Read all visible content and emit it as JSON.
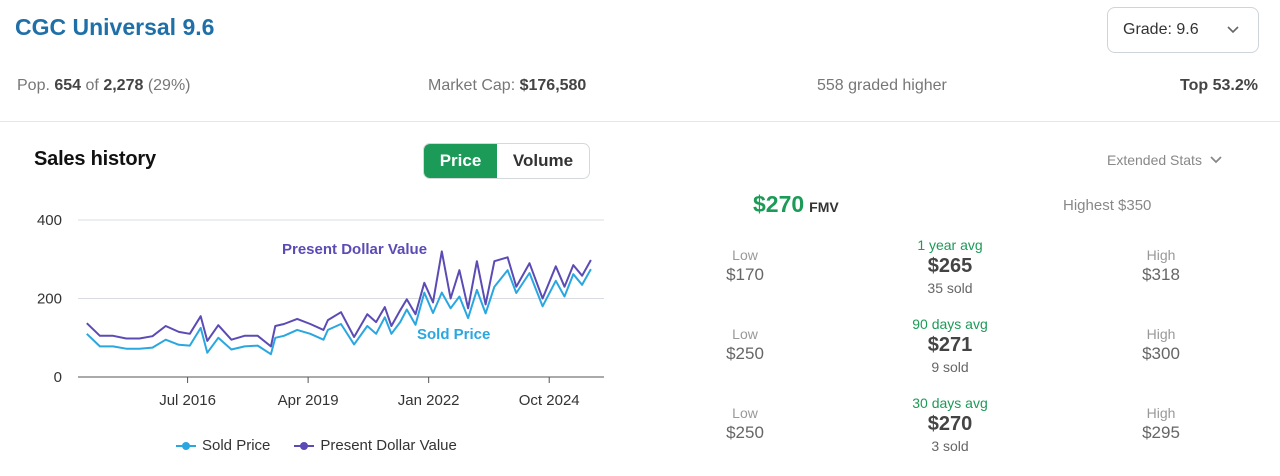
{
  "header": {
    "title": "CGC Universal 9.6",
    "grade_label": "Grade: 9.6"
  },
  "stats": {
    "pop_prefix": "Pop.",
    "pop_count": "654",
    "pop_of": "of",
    "pop_total": "2,278",
    "pop_pct": "(29%)",
    "market_cap_label": "Market Cap:",
    "market_cap_value": "$176,580",
    "graded_higher": "558 graded higher",
    "top": "Top 53.2%"
  },
  "sales": {
    "title": "Sales history",
    "toggle_price": "Price",
    "toggle_volume": "Volume",
    "extended_stats": "Extended Stats"
  },
  "colors": {
    "sold": "#2aa7e0",
    "present": "#5b4bb5",
    "accent_green": "#1c9a57",
    "title_blue": "#1f6fa8"
  },
  "icons": {
    "grade_chevron": "chevron-down-icon",
    "extended_chevron": "chevron-down-icon"
  },
  "chart_data": {
    "type": "line",
    "yticks": [
      "400",
      "200",
      "0"
    ],
    "xticks": [
      "Jul 2016",
      "Apr 2019",
      "Jan 2022",
      "Oct 2024"
    ],
    "ylim": [
      0,
      400
    ],
    "xlim": [
      2014.0,
      2026.0
    ],
    "grid": true,
    "annotations": {
      "present": "Present Dollar Value",
      "sold": "Sold Price"
    },
    "legend": {
      "position": "bottom",
      "items": [
        "Sold Price",
        "Present Dollar Value"
      ]
    },
    "x": [
      2014.2,
      2014.5,
      2014.8,
      2015.1,
      2015.4,
      2015.7,
      2016.0,
      2016.3,
      2016.55,
      2016.8,
      2016.95,
      2017.2,
      2017.5,
      2017.8,
      2018.1,
      2018.4,
      2018.5,
      2018.7,
      2019.0,
      2019.3,
      2019.6,
      2019.7,
      2020.0,
      2020.3,
      2020.6,
      2020.8,
      2021.0,
      2021.15,
      2021.35,
      2021.5,
      2021.7,
      2021.9,
      2022.1,
      2022.3,
      2022.5,
      2022.7,
      2022.9,
      2023.1,
      2023.3,
      2023.5,
      2023.8,
      2024.0,
      2024.3,
      2024.6,
      2024.9,
      2025.1,
      2025.3,
      2025.5,
      2025.7
    ],
    "series": [
      {
        "name": "Sold Price",
        "values": [
          110,
          78,
          78,
          72,
          72,
          75,
          95,
          82,
          80,
          125,
          62,
          100,
          70,
          78,
          80,
          58,
          100,
          105,
          120,
          110,
          95,
          120,
          135,
          83,
          130,
          110,
          152,
          110,
          140,
          172,
          133,
          215,
          163,
          215,
          175,
          205,
          150,
          222,
          162,
          230,
          272,
          214,
          265,
          180,
          245,
          205,
          262,
          235,
          275
        ]
      },
      {
        "name": "Present Dollar Value",
        "values": [
          137,
          105,
          105,
          98,
          98,
          104,
          130,
          115,
          110,
          155,
          92,
          132,
          95,
          105,
          105,
          78,
          130,
          135,
          148,
          135,
          120,
          145,
          165,
          102,
          160,
          140,
          178,
          130,
          170,
          198,
          160,
          240,
          190,
          320,
          200,
          272,
          175,
          295,
          185,
          295,
          305,
          230,
          290,
          200,
          282,
          230,
          285,
          258,
          298
        ]
      }
    ]
  },
  "fmv": {
    "value": "$270",
    "label": "FMV",
    "highest": "Highest $350"
  },
  "price_rows": [
    {
      "low_label": "Low",
      "low": "$170",
      "avg_label": "1 year avg",
      "avg": "$265",
      "sold": "35 sold",
      "high_label": "High",
      "high": "$318"
    },
    {
      "low_label": "Low",
      "low": "$250",
      "avg_label": "90 days avg",
      "avg": "$271",
      "sold": "9 sold",
      "high_label": "High",
      "high": "$300"
    },
    {
      "low_label": "Low",
      "low": "$250",
      "avg_label": "30 days avg",
      "avg": "$270",
      "sold": "3 sold",
      "high_label": "High",
      "high": "$295"
    }
  ]
}
